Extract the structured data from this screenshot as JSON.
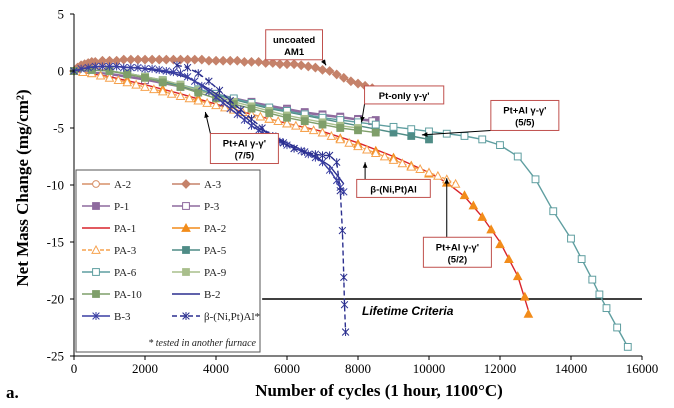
{
  "panel_label": "a.",
  "chart_data": {
    "type": "scatter",
    "title": "",
    "xlabel": "Number of cycles (1 hour, 1100°C)",
    "ylabel": "Net Mass Change (mg/cm²)",
    "xlim": [
      0,
      16000
    ],
    "ylim": [
      -25,
      5
    ],
    "xticks": [
      0,
      2000,
      4000,
      6000,
      8000,
      10000,
      12000,
      14000,
      16000
    ],
    "yticks": [
      5,
      0,
      -5,
      -10,
      -15,
      -20,
      -25
    ],
    "grid": false,
    "legend_position": "left",
    "legend_note": "* tested in another furnace",
    "reference_line": {
      "y": -20,
      "x_start": 5300,
      "x_end": 16000,
      "label": "Lifetime Criteria"
    },
    "annotations": [
      {
        "text": [
          "uncoated",
          "AM1"
        ],
        "box_x": 6200,
        "box_y": 2.3,
        "arrow_to": [
          7100,
          0.5
        ]
      },
      {
        "text": [
          "Pt-only γ-γ'"
        ],
        "box_x": 9300,
        "box_y": -2.1,
        "arrow_to": [
          8100,
          -4.5
        ]
      },
      {
        "text": [
          "Pt+Al γ-γ'",
          "(5/5)"
        ],
        "box_x": 12700,
        "box_y": -3.9,
        "arrow_to": [
          9800,
          -5.6
        ]
      },
      {
        "text": [
          "Pt+Al γ-γ'",
          "(7/5)"
        ],
        "box_x": 4800,
        "box_y": -6.8,
        "arrow_to": [
          3700,
          -3.6
        ]
      },
      {
        "text": [
          "β-(Ni,Pt)Al"
        ],
        "box_x": 9000,
        "box_y": -10.3,
        "arrow_to": [
          8200,
          -8.0
        ]
      },
      {
        "text": [
          "Pt+Al γ-γ'",
          "(5/2)"
        ],
        "box_x": 10800,
        "box_y": -15.9,
        "arrow_to": [
          10500,
          -9.4
        ]
      }
    ],
    "series": [
      {
        "name": "A-2",
        "color": "#d79068",
        "marker": "circle",
        "fill": false,
        "line": true,
        "x": [
          0,
          100,
          200,
          300,
          400,
          500,
          600,
          700,
          800
        ],
        "y": [
          0.0,
          0.2,
          0.3,
          0.4,
          0.4,
          0.5,
          0.5,
          0.5,
          0.4
        ]
      },
      {
        "name": "A-3",
        "color": "#c5826a",
        "marker": "diamond",
        "fill": true,
        "line": true,
        "x": [
          0,
          100,
          200,
          300,
          400,
          500,
          600,
          800,
          1000,
          1200,
          1400,
          1600,
          1800,
          2000,
          2200,
          2400,
          2600,
          2800,
          3000,
          3200,
          3400,
          3600,
          3800,
          4000,
          4200,
          4400,
          4600,
          4800,
          5000,
          5200,
          5400,
          5600,
          5800,
          6000,
          6200,
          6400,
          6600,
          6800,
          7000,
          7200,
          7400,
          7600,
          7800,
          8000,
          8200,
          8400,
          8600,
          8800,
          9000,
          9200,
          9400,
          9600,
          9800
        ],
        "y": [
          0.0,
          0.3,
          0.5,
          0.6,
          0.7,
          0.8,
          0.8,
          0.9,
          0.9,
          0.9,
          1.0,
          1.0,
          1.0,
          1.0,
          1.0,
          1.0,
          1.0,
          1.0,
          1.0,
          1.0,
          1.0,
          1.0,
          0.9,
          0.9,
          0.9,
          0.9,
          0.9,
          0.8,
          0.8,
          0.8,
          0.7,
          0.7,
          0.6,
          0.6,
          0.6,
          0.5,
          0.4,
          0.3,
          0.1,
          0.0,
          -0.3,
          -0.6,
          -0.9,
          -1.1,
          -1.3,
          -1.5,
          -1.7,
          -1.9,
          -2.0,
          -2.2,
          -2.3,
          -2.3,
          -2.3
        ]
      },
      {
        "name": "P-1",
        "color": "#8e6a9e",
        "marker": "square",
        "fill": true,
        "line": true,
        "x": [
          0,
          1000,
          2000,
          3000,
          4000,
          5000,
          6000,
          6500,
          7000,
          7500,
          8000,
          8500
        ],
        "y": [
          0.0,
          -0.2,
          -0.7,
          -1.3,
          -2.0,
          -2.7,
          -3.3,
          -3.6,
          -3.8,
          -4.0,
          -4.2,
          -4.3
        ]
      },
      {
        "name": "P-3",
        "color": "#8e6a9e",
        "marker": "square",
        "fill": false,
        "line": true,
        "x": [
          0,
          1000,
          2000,
          3000,
          4000,
          5000,
          6000,
          6500,
          7000,
          7500,
          8000,
          8400
        ],
        "y": [
          0.0,
          -0.3,
          -0.8,
          -1.4,
          -2.1,
          -2.8,
          -3.4,
          -3.7,
          -3.9,
          -4.1,
          -4.3,
          -4.4
        ]
      },
      {
        "name": "PA-1",
        "color": "#d9242b",
        "marker": "none",
        "fill": false,
        "line": true,
        "x": [
          0,
          1000,
          2000,
          3000,
          4000,
          5000,
          6000,
          7000,
          8000,
          9000,
          10000,
          10500,
          11000,
          11500,
          12000,
          12500,
          12800
        ],
        "y": [
          0.0,
          -0.5,
          -1.2,
          -2.0,
          -2.9,
          -3.8,
          -4.6,
          -5.3,
          -6.3,
          -7.5,
          -8.9,
          -9.8,
          -11.0,
          -12.8,
          -15.0,
          -18.0,
          -21.0
        ]
      },
      {
        "name": "PA-2",
        "color": "#f28c1b",
        "marker": "triangle",
        "fill": true,
        "line": false,
        "x": [
          500,
          1500,
          2500,
          3500,
          4500,
          5500,
          6000,
          6500,
          7000,
          7500,
          8000,
          8500,
          9000,
          9500,
          10000,
          10500,
          11000,
          11250,
          11500,
          11750,
          12000,
          12250,
          12500,
          12700,
          12800
        ],
        "y": [
          -0.2,
          -0.8,
          -1.6,
          -2.4,
          -3.3,
          -4.2,
          -4.6,
          -5.0,
          -5.4,
          -5.9,
          -6.4,
          -7.0,
          -7.6,
          -8.3,
          -9.0,
          -9.8,
          -10.9,
          -11.8,
          -12.8,
          -13.9,
          -15.2,
          -16.5,
          -18.0,
          -19.8,
          -21.3
        ]
      },
      {
        "name": "PA-3",
        "color": "#f6a24f",
        "marker": "triangle",
        "fill": false,
        "line": true,
        "dash": "4,2",
        "x": [
          0,
          250,
          500,
          750,
          1000,
          1250,
          1500,
          1750,
          2000,
          2250,
          2500,
          2750,
          3000,
          3250,
          3500,
          3750,
          4000,
          4250,
          4500,
          4750,
          5000,
          5250,
          5500,
          5750,
          6000,
          6250,
          6500,
          6750,
          7000,
          7250,
          7500,
          7750,
          8000,
          8250,
          8500,
          8750,
          9000,
          9250,
          9500,
          9750,
          10000,
          10250,
          10500,
          10750
        ],
        "y": [
          0.0,
          -0.1,
          -0.2,
          -0.4,
          -0.6,
          -0.8,
          -1.0,
          -1.2,
          -1.4,
          -1.6,
          -1.8,
          -2.0,
          -2.2,
          -2.4,
          -2.6,
          -2.8,
          -3.0,
          -3.2,
          -3.4,
          -3.6,
          -3.8,
          -4.0,
          -4.2,
          -4.4,
          -4.6,
          -4.8,
          -5.0,
          -5.2,
          -5.4,
          -5.7,
          -6.0,
          -6.3,
          -6.6,
          -6.9,
          -7.2,
          -7.5,
          -7.8,
          -8.1,
          -8.4,
          -8.6,
          -8.9,
          -9.2,
          -9.5,
          -9.9
        ]
      },
      {
        "name": "PA-5",
        "color": "#4f8c86",
        "marker": "square",
        "fill": true,
        "line": true,
        "x": [
          0,
          500,
          1000,
          1500,
          2000,
          2500,
          3000,
          3500,
          4000,
          4500,
          5000,
          5500,
          6000,
          6500,
          7000,
          7500,
          8000,
          8500,
          9000,
          9500,
          10000
        ],
        "y": [
          0.0,
          0.1,
          0.0,
          -0.2,
          -0.5,
          -0.9,
          -1.3,
          -1.7,
          -2.1,
          -2.5,
          -2.9,
          -3.3,
          -3.6,
          -3.9,
          -4.2,
          -4.5,
          -4.8,
          -5.1,
          -5.4,
          -5.7,
          -6.0
        ]
      },
      {
        "name": "PA-6",
        "color": "#5f9ea0",
        "marker": "square",
        "fill": false,
        "line": true,
        "x": [
          0,
          500,
          1000,
          1500,
          2000,
          2500,
          3000,
          3500,
          4000,
          4500,
          5000,
          5500,
          6000,
          6500,
          7000,
          7500,
          8000,
          8500,
          9000,
          9500,
          10000,
          10500,
          11000,
          11500,
          12000,
          12500,
          13000,
          13500,
          14000,
          14300,
          14600,
          14800,
          15000,
          15300,
          15600
        ],
        "y": [
          0.0,
          0.1,
          0.0,
          -0.2,
          -0.5,
          -0.8,
          -1.2,
          -1.6,
          -2.0,
          -2.4,
          -2.8,
          -3.2,
          -3.5,
          -3.8,
          -4.1,
          -4.3,
          -4.5,
          -4.7,
          -4.9,
          -5.1,
          -5.3,
          -5.5,
          -5.7,
          -6.0,
          -6.5,
          -7.5,
          -9.5,
          -12.3,
          -14.7,
          -16.5,
          -18.3,
          -19.6,
          -20.8,
          -22.5,
          -24.2
        ]
      },
      {
        "name": "PA-9",
        "color": "#a9bf8c",
        "marker": "square",
        "fill": true,
        "line": true,
        "x": [
          0,
          500,
          1000,
          1500,
          2000,
          2500,
          3000,
          3500,
          4000,
          4500,
          5000,
          5500,
          6000,
          6500,
          7000,
          7500,
          8000
        ],
        "y": [
          0.0,
          0.1,
          0.0,
          -0.2,
          -0.5,
          -0.8,
          -1.2,
          -1.7,
          -2.2,
          -2.7,
          -3.1,
          -3.5,
          -3.9,
          -4.2,
          -4.5,
          -4.8,
          -5.0
        ]
      },
      {
        "name": "PA-10",
        "color": "#7f9f6a",
        "marker": "square",
        "fill": true,
        "line": true,
        "x": [
          0,
          500,
          1000,
          1500,
          2000,
          2500,
          3000,
          3500,
          4000,
          4500,
          5000,
          5500,
          6000,
          6500,
          7000,
          7500,
          8000,
          8500
        ],
        "y": [
          0.0,
          0.1,
          0.0,
          -0.3,
          -0.6,
          -1.0,
          -1.4,
          -1.9,
          -2.4,
          -2.9,
          -3.3,
          -3.7,
          -4.1,
          -4.4,
          -4.7,
          -5.0,
          -5.2,
          -5.4
        ]
      },
      {
        "name": "B-2",
        "color": "#2b2f8f",
        "marker": "none",
        "fill": false,
        "line": true,
        "x": [
          0,
          400,
          800,
          1200,
          1600,
          2000,
          2400,
          2800,
          3200,
          3600,
          4000,
          4400,
          4800,
          5200,
          5600,
          6000,
          6400,
          6800,
          7000,
          7200,
          7300,
          7400,
          7500,
          7600
        ],
        "y": [
          0.0,
          0.3,
          0.4,
          0.4,
          0.3,
          0.2,
          0.0,
          -0.2,
          -0.6,
          -1.2,
          -2.0,
          -3.0,
          -4.0,
          -5.0,
          -5.7,
          -6.3,
          -6.9,
          -7.5,
          -7.9,
          -8.3,
          -8.7,
          -9.1,
          -9.5,
          -9.9
        ]
      },
      {
        "name": "B-3",
        "color": "#3a3fa3",
        "marker": "star",
        "fill": false,
        "line": true,
        "x": [
          0,
          200,
          400,
          600,
          800,
          1000,
          1200,
          1400,
          1600,
          1800,
          2000,
          2200,
          2400,
          2600,
          2800,
          3000,
          3200,
          3400,
          3600,
          3800,
          4000,
          4200,
          4400,
          4600,
          4800,
          5000,
          5200,
          5400,
          5600,
          5800,
          6000,
          6200,
          6400,
          6600,
          6800,
          7000,
          7200,
          7400,
          7500,
          7600
        ],
        "y": [
          0.0,
          0.2,
          0.3,
          0.4,
          0.4,
          0.4,
          0.4,
          0.3,
          0.3,
          0.3,
          0.2,
          0.2,
          0.1,
          0.0,
          -0.1,
          -0.2,
          -0.5,
          -0.9,
          -1.3,
          -1.8,
          -2.3,
          -2.8,
          -3.3,
          -3.8,
          -4.3,
          -4.8,
          -5.2,
          -5.6,
          -5.9,
          -6.2,
          -6.5,
          -6.8,
          -7.0,
          -7.3,
          -7.6,
          -8.0,
          -8.7,
          -9.6,
          -10.2,
          -10.6
        ]
      },
      {
        "name": "β-(Ni,Pt)Al*",
        "color": "#2b2f8f",
        "marker": "star",
        "fill": false,
        "line": true,
        "dash": "5,3",
        "x": [
          2900,
          3200,
          3500,
          3800,
          4100,
          4400,
          4700,
          5000,
          5300,
          5600,
          5900,
          6200,
          6500,
          6800,
          7000,
          7200,
          7400,
          7500,
          7560,
          7600,
          7620,
          7650
        ],
        "y": [
          0.5,
          0.3,
          -0.2,
          -0.9,
          -1.7,
          -2.6,
          -3.4,
          -4.2,
          -5.0,
          -5.7,
          -6.3,
          -6.8,
          -7.1,
          -7.3,
          -7.4,
          -7.4,
          -8.0,
          -10.5,
          -14.0,
          -18.1,
          -20.5,
          -22.9
        ]
      }
    ]
  }
}
